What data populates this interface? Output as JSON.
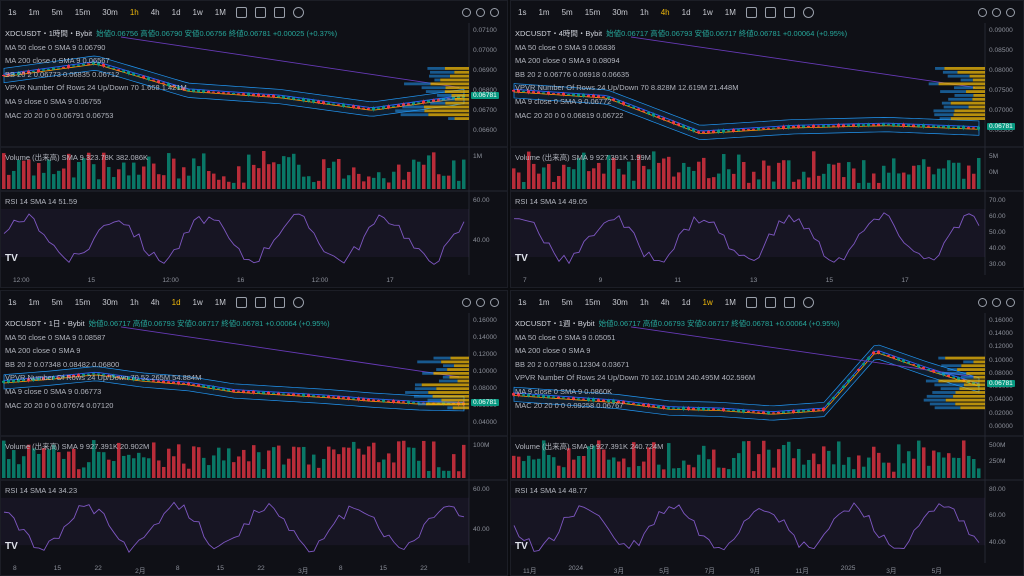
{
  "timeframes": [
    "1s",
    "1m",
    "5m",
    "15m",
    "30m",
    "1h",
    "4h",
    "1d",
    "1w",
    "1M"
  ],
  "symbol": "XDCUSDT",
  "exchange": "Bybit",
  "colors": {
    "up": "#089981",
    "down": "#f23645",
    "bb": "#2196f3",
    "ma50": "#2962ff",
    "ma200": "#673ab7",
    "rsi": "#7e57c2",
    "price_tag": "#089981",
    "active": "#f0b90b"
  },
  "panes": [
    {
      "active_tf": "1h",
      "title": "XDCUSDT・1時間・Bybit",
      "ohlc": "始値0.06756 高値0.06790 安値0.06756 終値0.06781 +0.00025 (+0.37%)",
      "ind": [
        "MA 50 close 0 SMA 9  0.06790",
        "MA 200 close 0 SMA 9  0.06567",
        "BB 20 2  0.06773  0.06835  0.06712",
        "VPVR Number Of Rows 24 Up/Down 70  1.668  1.421M",
        "MA 9 close 0 SMA 9  0.06755",
        "MAC 20 20 0 0  0.06791  0.06753"
      ],
      "vol_label": "Volume (出来高) SMA 9  323.78K  382.086K",
      "rsi_label": "RSI 14 SMA 14  51.59",
      "price_ticks": [
        "0.07100",
        "0.07000",
        "0.06900",
        "0.06800",
        "0.06700",
        "0.06600"
      ],
      "price_tag": "0.06781",
      "vol_ticks": [
        "1M"
      ],
      "rsi_ticks": [
        "60.00",
        "40.00"
      ],
      "time_ticks": [
        "12:00",
        "15",
        "12:00",
        "16",
        "12:00",
        "17"
      ]
    },
    {
      "active_tf": "4h",
      "title": "XDCUSDT・4時間・Bybit",
      "ohlc": "始値0.06717 高値0.06793 安値0.06717 終値0.06781 +0.00064 (+0.95%)",
      "ind": [
        "MA 50 close 0 SMA 9  0.06836",
        "MA 200 close 0 SMA 9  0.08094",
        "BB 20 2  0.06776  0.06918  0.06635",
        "VPVR Number Of Rows 24 Up/Down 70  8.828M  12.619M  21.448M",
        "MA 9 close 0 SMA 9  0.06772",
        "MAC 20 20 0 0  0.06819  0.06722"
      ],
      "vol_label": "Volume (出来高) SMA 9  927.391K  1.99M",
      "rsi_label": "RSI 14 SMA 14  49.05",
      "price_ticks": [
        "0.09000",
        "0.08500",
        "0.08000",
        "0.07500",
        "0.07000",
        "0.06500"
      ],
      "price_tag": "0.06781",
      "vol_ticks": [
        "5M",
        "0M"
      ],
      "rsi_ticks": [
        "70.00",
        "60.00",
        "50.00",
        "40.00",
        "30.00"
      ],
      "time_ticks": [
        "7",
        "9",
        "11",
        "13",
        "15",
        "17"
      ]
    },
    {
      "active_tf": "1d",
      "title": "XDCUSDT・1日・Bybit",
      "ohlc": "始値0.06717 高値0.06793 安値0.06717 終値0.06781 +0.00064 (+0.95%)",
      "ind": [
        "MA 50 close 0 SMA 9  0.08587",
        "MA 200 close 0 SMA 9",
        "BB 20 2  0.07348  0.08482  0.06800",
        "VPVR Number Of Rows 24 Up/Down 70  52.265M  54.884M",
        "MA 9 close 0 SMA 9  0.06773",
        "MAC 20 20 0 0  0.07674  0.07120"
      ],
      "vol_label": "Volume (出来高) SMA 9  927.391K  20.902M",
      "rsi_label": "RSI 14 SMA 14  34.23",
      "price_ticks": [
        "0.16000",
        "0.14000",
        "0.12000",
        "0.10000",
        "0.08000",
        "0.06000",
        "0.04000"
      ],
      "price_tag": "0.06781",
      "vol_ticks": [
        "100M"
      ],
      "rsi_ticks": [
        "60.00",
        "40.00"
      ],
      "time_ticks": [
        "8",
        "15",
        "22",
        "2月",
        "8",
        "15",
        "22",
        "3月",
        "8",
        "15",
        "22"
      ]
    },
    {
      "active_tf": "1w",
      "title": "XDCUSDT・1週・Bybit",
      "ohlc": "始値0.06717 高値0.06793 安値0.06717 終値0.06781 +0.00064 (+0.95%)",
      "ind": [
        "MA 50 close 0 SMA 9  0.05051",
        "MA 200 close 0 SMA 9",
        "BB 20 2  0.07988  0.12304  0.03671",
        "VPVR Number Of Rows 24 Up/Down 70  162.101M  240.495M  402.596M",
        "MA 9 close 0 SMA 9  0.0860K",
        "MAC 20 20 0 0  0.09258  0.06767"
      ],
      "vol_label": "Volume (出来高) SMA 9  927.391K  240.724M",
      "rsi_label": "RSI 14 SMA 14  48.77",
      "price_ticks": [
        "0.16000",
        "0.14000",
        "0.12000",
        "0.10000",
        "0.08000",
        "0.06000",
        "0.04000",
        "0.02000",
        "0.00000"
      ],
      "price_tag": "0.06781",
      "vol_ticks": [
        "500M",
        "250M"
      ],
      "rsi_ticks": [
        "80.00",
        "60.00",
        "40.00"
      ],
      "time_ticks": [
        "11月",
        "2024",
        "3月",
        "5月",
        "7月",
        "9月",
        "11月",
        "2025",
        "3月",
        "5月"
      ]
    }
  ],
  "chart_data": [
    {
      "type": "line",
      "title": "XDCUSDT・1時間・Bybit",
      "x": [
        "12:00",
        "15",
        "12:00",
        "16",
        "12:00",
        "17"
      ],
      "series": [
        {
          "name": "close",
          "values": [
            0.0688,
            0.0694,
            0.0681,
            0.0678,
            0.0672,
            0.0678
          ]
        }
      ],
      "ylim": [
        0.0655,
        0.0712
      ]
    },
    {
      "type": "line",
      "title": "XDCUSDT・4時間・Bybit",
      "x": [
        "7",
        "9",
        "11",
        "13",
        "15",
        "17"
      ],
      "series": [
        {
          "name": "close",
          "values": [
            0.0762,
            0.0748,
            0.0668,
            0.0681,
            0.0686,
            0.0678
          ]
        }
      ],
      "ylim": [
        0.064,
        0.091
      ]
    },
    {
      "type": "line",
      "title": "XDCUSDT・1日・Bybit",
      "x": [
        "8",
        "15",
        "22",
        "2月",
        "8",
        "15",
        "22",
        "3月",
        "8",
        "15",
        "22"
      ],
      "series": [
        {
          "name": "close",
          "values": [
            0.092,
            0.096,
            0.101,
            0.094,
            0.09,
            0.082,
            0.079,
            0.076,
            0.072,
            0.069,
            0.068
          ]
        }
      ],
      "ylim": [
        0.035,
        0.165
      ]
    },
    {
      "type": "line",
      "title": "XDCUSDT・1週・Bybit",
      "x": [
        "11月",
        "2024",
        "3月",
        "5月",
        "7月",
        "9月",
        "11月",
        "2025",
        "3月",
        "5月"
      ],
      "series": [
        {
          "name": "close",
          "values": [
            0.055,
            0.05,
            0.045,
            0.036,
            0.034,
            0.029,
            0.034,
            0.115,
            0.09,
            0.068
          ]
        }
      ],
      "ylim": [
        0.0,
        0.165
      ]
    }
  ]
}
